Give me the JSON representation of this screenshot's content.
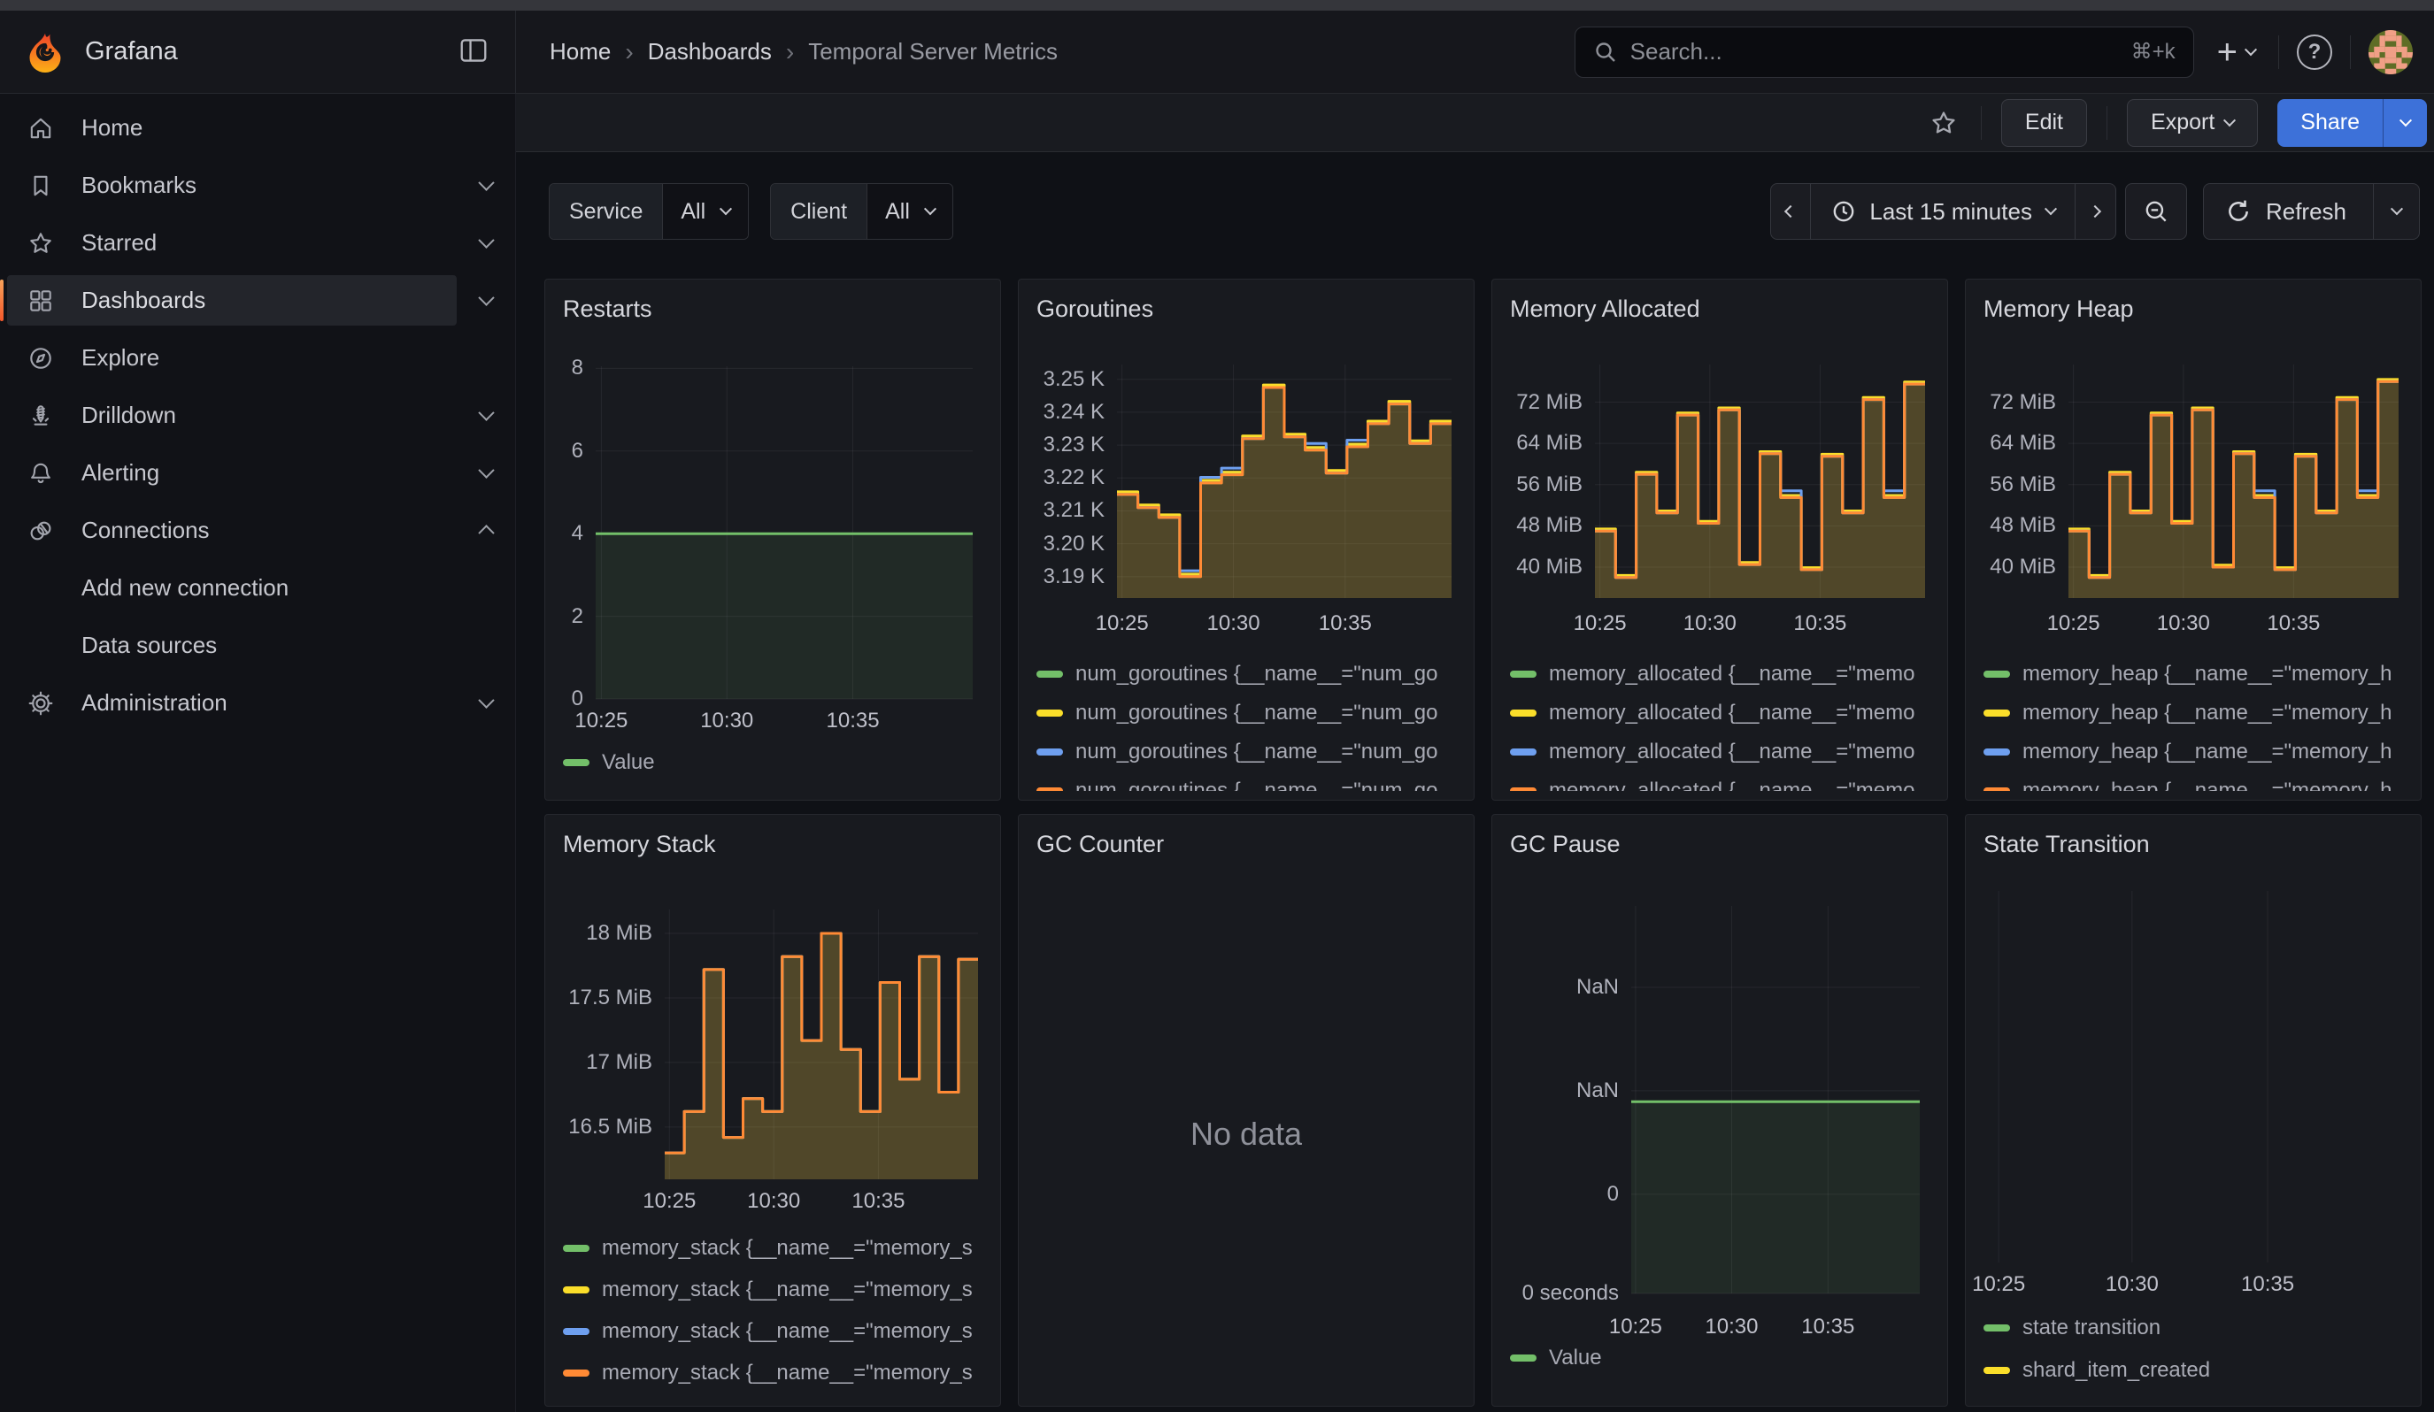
{
  "window": {
    "brand": "Grafana"
  },
  "header": {
    "breadcrumb": [
      {
        "label": "Home"
      },
      {
        "label": "Dashboards"
      },
      {
        "label": "Temporal Server Metrics"
      }
    ],
    "search": {
      "placeholder": "Search...",
      "shortcut": "⌘+k"
    }
  },
  "sidebar": {
    "items": [
      {
        "id": "home",
        "label": "Home",
        "icon": "home"
      },
      {
        "id": "bookmarks",
        "label": "Bookmarks",
        "icon": "bookmark",
        "chevron": "down"
      },
      {
        "id": "starred",
        "label": "Starred",
        "icon": "star",
        "chevron": "down"
      },
      {
        "id": "dashboards",
        "label": "Dashboards",
        "icon": "apps",
        "chevron": "down",
        "active": true
      },
      {
        "id": "explore",
        "label": "Explore",
        "icon": "compass"
      },
      {
        "id": "drilldown",
        "label": "Drilldown",
        "icon": "drilldown",
        "chevron": "down"
      },
      {
        "id": "alerting",
        "label": "Alerting",
        "icon": "bell",
        "chevron": "down"
      },
      {
        "id": "connections",
        "label": "Connections",
        "icon": "connections",
        "chevron": "up"
      },
      {
        "id": "add-new-connection",
        "label": "Add new connection",
        "child": true
      },
      {
        "id": "data-sources",
        "label": "Data sources",
        "child": true
      },
      {
        "id": "administration",
        "label": "Administration",
        "icon": "gear",
        "chevron": "down"
      }
    ]
  },
  "toolbar": {
    "edit": "Edit",
    "export": "Export",
    "share": "Share"
  },
  "filters": [
    {
      "label": "Service",
      "value": "All"
    },
    {
      "label": "Client",
      "value": "All"
    }
  ],
  "timebar": {
    "range": "Last 15 minutes",
    "refresh": "Refresh"
  },
  "colors": {
    "green": "#73BF69",
    "yellow": "#FADE2A",
    "blue": "#6E9FEF",
    "orange": "#FF8A35",
    "accent": "#F4582B",
    "primary": "#3D71D9"
  },
  "chart_data": [
    {
      "panel": "restarts",
      "title": "Restarts",
      "type": "area",
      "ylim": [
        0,
        8.05
      ],
      "y_ticks": [
        {
          "v": 8,
          "label": "8"
        },
        {
          "v": 6,
          "label": "6"
        },
        {
          "v": 4,
          "label": "4"
        },
        {
          "v": 2,
          "label": "2"
        },
        {
          "v": 0,
          "label": "0"
        }
      ],
      "x_ticks": [
        {
          "f": 0.015,
          "label": "10:25"
        },
        {
          "f": 0.348,
          "label": "10:30"
        },
        {
          "f": 0.682,
          "label": "10:35"
        }
      ],
      "series": [
        {
          "name": "Value",
          "color": "#73BF69",
          "fill": "rgba(115,191,105,0.10)",
          "values": [
            4,
            4
          ]
        }
      ],
      "legend": [
        {
          "color": "#73BF69",
          "label": "Value"
        }
      ]
    },
    {
      "panel": "goroutines",
      "title": "Goroutines",
      "type": "area",
      "ylim": [
        3.1835,
        3.2545
      ],
      "y_ticks": [
        {
          "v": 3.25,
          "label": "3.25 K"
        },
        {
          "v": 3.24,
          "label": "3.24 K"
        },
        {
          "v": 3.23,
          "label": "3.23 K"
        },
        {
          "v": 3.22,
          "label": "3.22 K"
        },
        {
          "v": 3.21,
          "label": "3.21 K"
        },
        {
          "v": 3.2,
          "label": "3.20 K"
        },
        {
          "v": 3.19,
          "label": "3.19 K"
        }
      ],
      "x_ticks": [
        {
          "f": 0.015,
          "label": "10:25"
        },
        {
          "f": 0.348,
          "label": "10:30"
        },
        {
          "f": 0.682,
          "label": "10:35"
        }
      ],
      "series": [
        {
          "name": "num_goroutines green",
          "color": "#73BF69",
          "fill": "rgba(115,191,105,0.05)",
          "values": [
            3.215,
            3.211,
            3.208,
            3.19,
            3.2185,
            3.221,
            3.232,
            3.2475,
            3.2325,
            3.2285,
            3.2215,
            3.2295,
            3.2365,
            3.2425,
            3.2305,
            3.2365
          ]
        },
        {
          "name": "num_goroutines yellow",
          "color": "#FADE2A",
          "fill": "rgba(250,222,42,0.12)",
          "values": [
            3.2158,
            3.2118,
            3.2088,
            3.1908,
            3.2193,
            3.2218,
            3.2328,
            3.2483,
            3.2333,
            3.2293,
            3.2223,
            3.2303,
            3.2373,
            3.2433,
            3.2313,
            3.2373
          ]
        },
        {
          "name": "num_goroutines blue",
          "color": "#6E9FEF",
          "fill": "rgba(87,148,242,0.04)",
          "values": [
            3.215,
            3.211,
            3.208,
            3.1918,
            3.2202,
            3.223,
            3.232,
            3.2475,
            3.2325,
            3.2305,
            3.2215,
            3.2315,
            3.2365,
            3.2425,
            3.2305,
            3.2365
          ]
        },
        {
          "name": "num_goroutines orange",
          "color": "#FF8A35",
          "fill": "rgba(255,152,48,0.13)",
          "values": [
            3.215,
            3.211,
            3.208,
            3.19,
            3.2185,
            3.221,
            3.232,
            3.2475,
            3.2325,
            3.2285,
            3.2215,
            3.2295,
            3.2365,
            3.2425,
            3.2305,
            3.2365
          ]
        }
      ],
      "legend": [
        {
          "color": "#73BF69",
          "label": "num_goroutines {__name__=\"num_go"
        },
        {
          "color": "#FADE2A",
          "label": "num_goroutines {__name__=\"num_go"
        },
        {
          "color": "#6E9FEF",
          "label": "num_goroutines {__name__=\"num_go"
        },
        {
          "color": "#FF8A35",
          "label": "num_goroutines {__name__=\"num_go"
        }
      ]
    },
    {
      "panel": "memory-allocated",
      "title": "Memory Allocated",
      "type": "area",
      "ylim": [
        34,
        79.3
      ],
      "y_ticks": [
        {
          "v": 72,
          "label": "72 MiB"
        },
        {
          "v": 64,
          "label": "64 MiB"
        },
        {
          "v": 56,
          "label": "56 MiB"
        },
        {
          "v": 48,
          "label": "48 MiB"
        },
        {
          "v": 40,
          "label": "40 MiB"
        }
      ],
      "x_ticks": [
        {
          "f": 0.015,
          "label": "10:25"
        },
        {
          "f": 0.348,
          "label": "10:30"
        },
        {
          "f": 0.682,
          "label": "10:35"
        }
      ],
      "series": [
        {
          "name": "memory_allocated green",
          "color": "#73BF69",
          "fill": "rgba(115,191,105,0.05)",
          "values": [
            47,
            38,
            58,
            50.5,
            69.5,
            48.5,
            70.5,
            40.5,
            62,
            53.5,
            39.5,
            61.5,
            50.5,
            72.5,
            53.5,
            75.5
          ]
        },
        {
          "name": "memory_allocated yellow",
          "color": "#FADE2A",
          "fill": "rgba(250,222,42,0.12)",
          "values": [
            47.4,
            38.4,
            58.4,
            50.9,
            69.9,
            48.9,
            70.9,
            40.9,
            62.4,
            53.9,
            39.9,
            61.9,
            50.9,
            72.9,
            53.9,
            75.9
          ]
        },
        {
          "name": "memory_allocated blue",
          "color": "#6E9FEF",
          "fill": "rgba(87,148,242,0.04)",
          "values": [
            47,
            38,
            58,
            50.5,
            69.5,
            48.5,
            70.5,
            40.5,
            62,
            54.8,
            39.5,
            61.5,
            50.5,
            72.5,
            54.8,
            75.5
          ]
        },
        {
          "name": "memory_allocated orange",
          "color": "#FF8A35",
          "fill": "rgba(255,152,48,0.13)",
          "values": [
            47,
            38,
            58,
            50.5,
            69.5,
            48.5,
            70.5,
            40.5,
            62,
            53.5,
            39.5,
            61.5,
            50.5,
            72.5,
            53.5,
            75.5
          ]
        }
      ],
      "legend": [
        {
          "color": "#73BF69",
          "label": "memory_allocated {__name__=\"memo"
        },
        {
          "color": "#FADE2A",
          "label": "memory_allocated {__name__=\"memo"
        },
        {
          "color": "#6E9FEF",
          "label": "memory_allocated {__name__=\"memo"
        },
        {
          "color": "#FF8A35",
          "label": "memory_allocated {__name__=\"memo"
        }
      ]
    },
    {
      "panel": "memory-heap",
      "title": "Memory Heap",
      "type": "area",
      "ylim": [
        34,
        79.3
      ],
      "y_ticks": [
        {
          "v": 72,
          "label": "72 MiB"
        },
        {
          "v": 64,
          "label": "64 MiB"
        },
        {
          "v": 56,
          "label": "56 MiB"
        },
        {
          "v": 48,
          "label": "48 MiB"
        },
        {
          "v": 40,
          "label": "40 MiB"
        }
      ],
      "x_ticks": [
        {
          "f": 0.015,
          "label": "10:25"
        },
        {
          "f": 0.348,
          "label": "10:30"
        },
        {
          "f": 0.682,
          "label": "10:35"
        }
      ],
      "series": [
        {
          "name": "memory_heap green",
          "color": "#73BF69",
          "fill": "rgba(115,191,105,0.05)",
          "values": [
            47,
            38,
            58,
            50.5,
            69.5,
            48.5,
            70.5,
            40,
            62,
            53.5,
            39.5,
            61.5,
            50.5,
            72.5,
            53.5,
            76
          ]
        },
        {
          "name": "memory_heap yellow",
          "color": "#FADE2A",
          "fill": "rgba(250,222,42,0.12)",
          "values": [
            47.4,
            38.4,
            58.4,
            50.9,
            69.9,
            48.9,
            70.9,
            40.4,
            62.4,
            53.9,
            39.9,
            61.9,
            50.9,
            72.9,
            53.9,
            76.4
          ]
        },
        {
          "name": "memory_heap blue",
          "color": "#6E9FEF",
          "fill": "rgba(87,148,242,0.04)",
          "values": [
            47,
            38,
            58,
            50.5,
            69.5,
            48.5,
            70.5,
            40,
            62,
            54.8,
            39.5,
            61.5,
            50.5,
            72.5,
            54.8,
            76
          ]
        },
        {
          "name": "memory_heap orange",
          "color": "#FF8A35",
          "fill": "rgba(255,152,48,0.13)",
          "values": [
            47,
            38,
            58,
            50.5,
            69.5,
            48.5,
            70.5,
            40,
            62,
            53.5,
            39.5,
            61.5,
            50.5,
            72.5,
            53.5,
            76
          ]
        }
      ],
      "legend": [
        {
          "color": "#73BF69",
          "label": "memory_heap {__name__=\"memory_h"
        },
        {
          "color": "#FADE2A",
          "label": "memory_heap {__name__=\"memory_h"
        },
        {
          "color": "#6E9FEF",
          "label": "memory_heap {__name__=\"memory_h"
        },
        {
          "color": "#FF8A35",
          "label": "memory_heap {__name__=\"memory_h"
        }
      ]
    },
    {
      "panel": "memory-stack",
      "title": "Memory Stack",
      "type": "area",
      "ylim": [
        16.095,
        18.185
      ],
      "y_ticks": [
        {
          "v": 18,
          "label": "18 MiB"
        },
        {
          "v": 17.5,
          "label": "17.5 MiB"
        },
        {
          "v": 17,
          "label": "17 MiB"
        },
        {
          "v": 16.5,
          "label": "16.5 MiB"
        }
      ],
      "x_ticks": [
        {
          "f": 0.015,
          "label": "10:25"
        },
        {
          "f": 0.348,
          "label": "10:30"
        },
        {
          "f": 0.682,
          "label": "10:35"
        }
      ],
      "series": [
        {
          "name": "memory_stack green",
          "color": "#73BF69",
          "fill": "rgba(115,191,105,0.05)",
          "values": [
            16.3,
            16.62,
            17.72,
            16.42,
            16.72,
            16.62,
            17.82,
            17.17,
            18.0,
            17.1,
            16.62,
            17.62,
            16.87,
            17.82,
            16.77,
            17.8
          ]
        },
        {
          "name": "memory_stack yellow",
          "color": "#FADE2A",
          "fill": "rgba(250,222,42,0.12)",
          "values": [
            16.3,
            16.62,
            17.72,
            16.42,
            16.72,
            16.62,
            17.82,
            17.17,
            18.0,
            17.1,
            16.62,
            17.62,
            16.87,
            17.82,
            16.77,
            17.8
          ]
        },
        {
          "name": "memory_stack blue",
          "color": "#6E9FEF",
          "fill": "rgba(87,148,242,0.04)",
          "values": [
            16.3,
            16.62,
            17.72,
            16.42,
            16.72,
            16.62,
            17.82,
            17.17,
            18.0,
            17.1,
            16.62,
            17.62,
            16.87,
            17.82,
            16.77,
            17.8
          ]
        },
        {
          "name": "memory_stack orange",
          "color": "#FF8A35",
          "fill": "rgba(255,152,48,0.13)",
          "values": [
            16.3,
            16.62,
            17.72,
            16.42,
            16.72,
            16.62,
            17.82,
            17.17,
            18.0,
            17.1,
            16.62,
            17.62,
            16.87,
            17.82,
            16.77,
            17.8
          ]
        }
      ],
      "legend": [
        {
          "color": "#73BF69",
          "label": "memory_stack {__name__=\"memory_s"
        },
        {
          "color": "#FADE2A",
          "label": "memory_stack {__name__=\"memory_s"
        },
        {
          "color": "#6E9FEF",
          "label": "memory_stack {__name__=\"memory_s"
        },
        {
          "color": "#FF8A35",
          "label": "memory_stack {__name__=\"memory_s"
        }
      ]
    },
    {
      "panel": "gc-counter",
      "title": "GC Counter",
      "type": "none",
      "no_data": "No data"
    },
    {
      "panel": "gc-pause",
      "title": "GC Pause",
      "type": "area",
      "ylim": [
        0,
        1
      ],
      "y_ticks": [
        {
          "v": 0.79,
          "label": "NaN"
        },
        {
          "v": 0.523,
          "label": "NaN"
        },
        {
          "v": 0.256,
          "label": "0"
        },
        {
          "v": 0,
          "label": "0 seconds"
        }
      ],
      "x_ticks": [
        {
          "f": 0.015,
          "label": "10:25"
        },
        {
          "f": 0.348,
          "label": "10:30"
        },
        {
          "f": 0.682,
          "label": "10:35"
        }
      ],
      "series": [
        {
          "name": "Value",
          "color": "#73BF69",
          "fill": "rgba(115,191,105,0.10)",
          "values": [
            0.495,
            0.495
          ]
        }
      ],
      "legend": [
        {
          "color": "#73BF69",
          "label": "Value"
        }
      ]
    },
    {
      "panel": "state-transition",
      "title": "State Transition",
      "type": "area",
      "ylim": [
        0,
        1
      ],
      "y_ticks": [],
      "x_ticks": [
        {
          "f": 0.072,
          "label": "10:25"
        },
        {
          "f": 0.364,
          "label": "10:30"
        },
        {
          "f": 0.661,
          "label": "10:35"
        }
      ],
      "series": [
        {
          "name": "state transition",
          "color": "#73BF69",
          "values": []
        },
        {
          "name": "shard_item_created",
          "color": "#FADE2A",
          "values": []
        }
      ],
      "legend": [
        {
          "color": "#73BF69",
          "label": "state transition"
        },
        {
          "color": "#FADE2A",
          "label": "shard_item_created"
        }
      ]
    }
  ]
}
